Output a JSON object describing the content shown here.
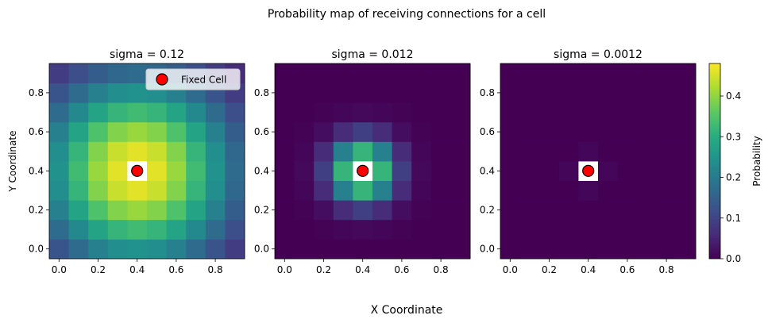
{
  "figure": {
    "suptitle": "Probability map of receiving connections for a cell",
    "xlabel": "X Coordinate"
  },
  "chart_data": [
    {
      "type": "heatmap",
      "title": "sigma = 0.12",
      "sigma": 0.12,
      "ylabel": "Y Coordinate",
      "grid_size": 10,
      "cell_centers": [
        0.0,
        0.1,
        0.2,
        0.3,
        0.4,
        0.5,
        0.6,
        0.7,
        0.8,
        0.9
      ],
      "xlim": [
        -0.05,
        0.95
      ],
      "ylim": [
        -0.05,
        0.95
      ],
      "xticks": [
        "0.0",
        "0.2",
        "0.4",
        "0.6",
        "0.8"
      ],
      "yticks": [
        "0.0",
        "0.2",
        "0.4",
        "0.6",
        "0.8"
      ],
      "peak": 0.48,
      "fixed_cell": {
        "x": 0.4,
        "y": 0.4
      },
      "legend": {
        "label": "Fixed Cell",
        "placement": "upper right"
      }
    },
    {
      "type": "heatmap",
      "title": "sigma = 0.012",
      "sigma": 0.012,
      "ylabel": "",
      "grid_size": 10,
      "cell_centers": [
        0.0,
        0.1,
        0.2,
        0.3,
        0.4,
        0.5,
        0.6,
        0.7,
        0.8,
        0.9
      ],
      "xlim": [
        -0.05,
        0.95
      ],
      "ylim": [
        -0.05,
        0.95
      ],
      "xticks": [
        "0.0",
        "0.2",
        "0.4",
        "0.6",
        "0.8"
      ],
      "yticks": [
        "0.0",
        "0.2",
        "0.4",
        "0.6",
        "0.8"
      ],
      "peak": 0.48,
      "fixed_cell": {
        "x": 0.4,
        "y": 0.4
      }
    },
    {
      "type": "heatmap",
      "title": "sigma = 0.0012",
      "sigma": 0.0012,
      "ylabel": "",
      "grid_size": 10,
      "cell_centers": [
        0.0,
        0.1,
        0.2,
        0.3,
        0.4,
        0.5,
        0.6,
        0.7,
        0.8,
        0.9
      ],
      "xlim": [
        -0.05,
        0.95
      ],
      "ylim": [
        -0.05,
        0.95
      ],
      "xticks": [
        "0.0",
        "0.2",
        "0.4",
        "0.6",
        "0.8"
      ],
      "yticks": [
        "0.0",
        "0.2",
        "0.4",
        "0.6",
        "0.8"
      ],
      "peak": 0.48,
      "fixed_cell": {
        "x": 0.4,
        "y": 0.4
      }
    }
  ],
  "colorbar": {
    "label": "Probability",
    "colormap": "viridis",
    "range": [
      0.0,
      0.48
    ],
    "ticks": [
      0.0,
      0.1,
      0.2,
      0.3,
      0.4
    ],
    "tick_labels": [
      "0.0",
      "0.1",
      "0.2",
      "0.3",
      "0.4"
    ]
  },
  "colors": {
    "fixed_cell_fill": "#ff0000",
    "fixed_cell_edge": "#000000",
    "fixed_cell_square": "#ffffff"
  }
}
